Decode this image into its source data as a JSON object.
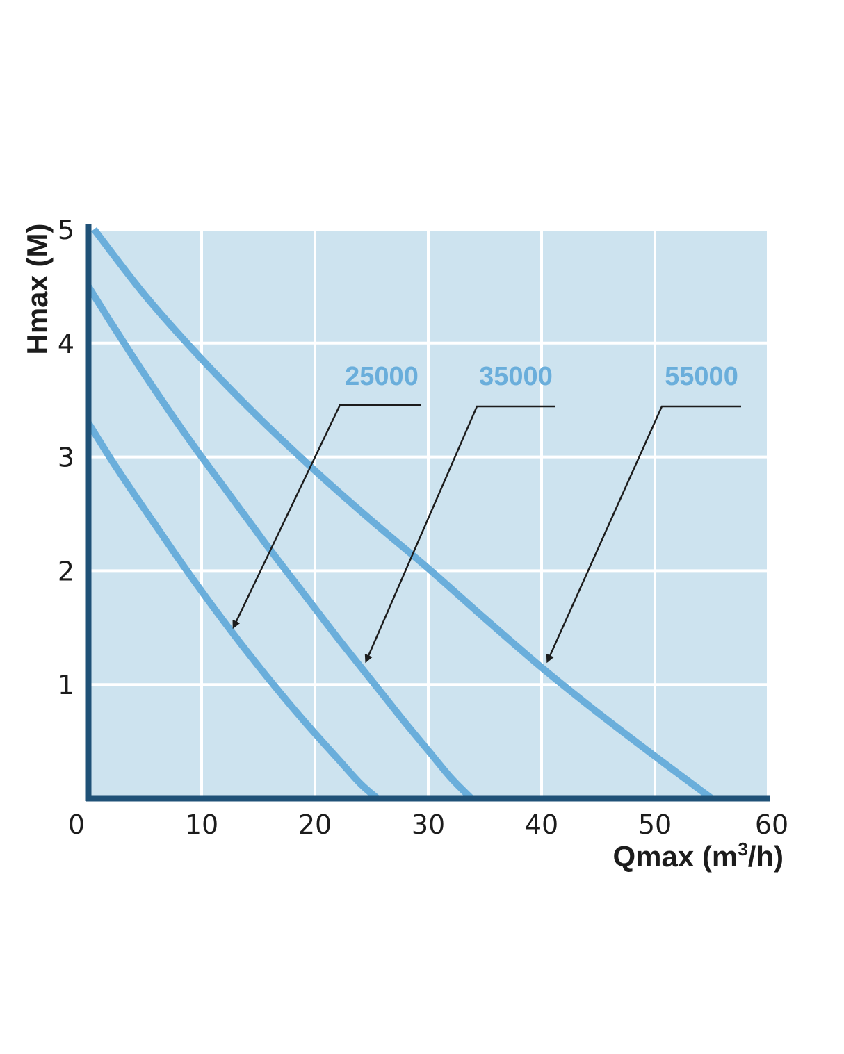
{
  "chart_data": {
    "type": "line",
    "title": "",
    "xlabel": "Qmax (m³/h)",
    "xlabel_parts": {
      "prefix": "Qmax (m",
      "sup": "3",
      "suffix": "/h)"
    },
    "ylabel": "Hmax (M)",
    "xlim": [
      0,
      60
    ],
    "ylim": [
      0,
      5
    ],
    "xticks": [
      0,
      10,
      20,
      30,
      40,
      50,
      60
    ],
    "yticks": [
      1,
      2,
      3,
      4,
      5
    ],
    "grid": true,
    "series": [
      {
        "name": "25000",
        "x": [
          0,
          2,
          4,
          6,
          8,
          10,
          12,
          14,
          16,
          18,
          20,
          22,
          24,
          25.5
        ],
        "y": [
          3.3,
          2.98,
          2.68,
          2.39,
          2.1,
          1.82,
          1.55,
          1.29,
          1.04,
          0.8,
          0.57,
          0.35,
          0.13,
          0
        ]
      },
      {
        "name": "35000",
        "x": [
          0,
          2,
          4,
          6,
          8,
          10,
          12,
          14,
          16,
          18,
          20,
          22,
          24,
          26,
          28,
          30,
          32,
          33.8
        ],
        "y": [
          4.5,
          4.18,
          3.87,
          3.57,
          3.28,
          3.0,
          2.73,
          2.46,
          2.19,
          1.93,
          1.67,
          1.41,
          1.16,
          0.91,
          0.66,
          0.42,
          0.18,
          0
        ]
      },
      {
        "name": "55000",
        "x": [
          0.5,
          5,
          10,
          15,
          20,
          25,
          30,
          35,
          40,
          45,
          50,
          55
        ],
        "y": [
          5.0,
          4.42,
          3.86,
          3.35,
          2.88,
          2.44,
          2.02,
          1.58,
          1.15,
          0.75,
          0.37,
          0
        ]
      }
    ],
    "annotations": [
      {
        "label": "25000",
        "arrow_to": [
          12.8,
          1.5
        ]
      },
      {
        "label": "35000",
        "arrow_to": [
          24.5,
          1.2
        ]
      },
      {
        "label": "55000",
        "arrow_to": [
          40.5,
          1.2
        ]
      }
    ],
    "colors": {
      "plot_background": "#cde3ef",
      "grid": "#ffffff",
      "axis": "#1f5177",
      "series": "#6aaedb",
      "label": "#6aaedb",
      "callout": "#1c1c1c"
    }
  }
}
